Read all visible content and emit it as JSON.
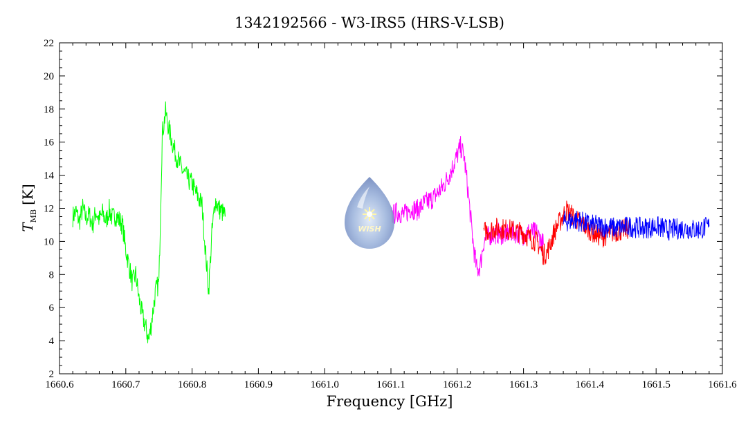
{
  "chart_data": {
    "type": "line",
    "title": "1342192566 - W3-IRS5 (HRS-V-LSB)",
    "xlabel": "Frequency [GHz]",
    "ylabel": "T",
    "ylabel_subscript": "MB",
    "ylabel_unit": "[K]",
    "xlim": [
      1660.6,
      1661.6
    ],
    "ylim": [
      2,
      22
    ],
    "xticks": [
      "1660.6",
      "1660.7",
      "1660.8",
      "1660.9",
      "1661.0",
      "1661.1",
      "1661.2",
      "1661.3",
      "1661.4",
      "1661.5",
      "1661.6"
    ],
    "yticks": [
      "2",
      "4",
      "6",
      "8",
      "10",
      "12",
      "14",
      "16",
      "18",
      "20",
      "22"
    ],
    "grid": false,
    "logo_text": "WISH",
    "series": [
      {
        "color": "#00ff00",
        "x": [
          1660.62,
          1660.625,
          1660.63,
          1660.635,
          1660.64,
          1660.645,
          1660.65,
          1660.655,
          1660.66,
          1660.665,
          1660.67,
          1660.675,
          1660.68,
          1660.685,
          1660.69,
          1660.695,
          1660.7,
          1660.705,
          1660.71,
          1660.715,
          1660.72,
          1660.725,
          1660.73,
          1660.735,
          1660.74,
          1660.745,
          1660.75,
          1660.755,
          1660.76,
          1660.765,
          1660.77,
          1660.775,
          1660.78,
          1660.785,
          1660.79,
          1660.795,
          1660.8,
          1660.805,
          1660.81,
          1660.815,
          1660.82,
          1660.825,
          1660.83,
          1660.835,
          1660.84,
          1660.845,
          1660.85
        ],
        "y": [
          11.5,
          11.8,
          11.2,
          12.0,
          11.4,
          11.6,
          11.0,
          11.8,
          11.3,
          11.7,
          11.2,
          11.9,
          11.4,
          11.6,
          11.3,
          11.0,
          9.5,
          8.5,
          7.5,
          8.0,
          6.5,
          5.5,
          4.8,
          4.0,
          5.5,
          7.0,
          7.5,
          16.5,
          17.8,
          16.8,
          16.0,
          15.3,
          14.8,
          14.3,
          14.0,
          13.7,
          13.5,
          13.0,
          12.6,
          12.2,
          9.5,
          7.0,
          10.5,
          12.5,
          12.0,
          11.8,
          11.5
        ]
      },
      {
        "color": "#ff00ff",
        "x": [
          1661.1,
          1661.11,
          1661.12,
          1661.13,
          1661.14,
          1661.15,
          1661.16,
          1661.17,
          1661.18,
          1661.19,
          1661.2,
          1661.205,
          1661.21,
          1661.215,
          1661.22,
          1661.225,
          1661.23,
          1661.235,
          1661.24,
          1661.25,
          1661.26,
          1661.27,
          1661.28,
          1661.29,
          1661.3,
          1661.31,
          1661.32,
          1661.33
        ],
        "y": [
          11.5,
          11.8,
          11.6,
          12.0,
          11.9,
          12.3,
          12.5,
          12.9,
          13.4,
          14.2,
          15.2,
          15.7,
          15.2,
          13.5,
          11.5,
          9.5,
          8.2,
          8.6,
          10.0,
          10.4,
          10.5,
          10.4,
          10.6,
          10.5,
          10.4,
          10.6,
          10.5,
          9.8
        ]
      },
      {
        "color": "#ff0000",
        "x": [
          1661.24,
          1661.26,
          1661.28,
          1661.3,
          1661.31,
          1661.32,
          1661.325,
          1661.33,
          1661.335,
          1661.34,
          1661.345,
          1661.35,
          1661.355,
          1661.36,
          1661.365,
          1661.37,
          1661.375,
          1661.38,
          1661.39,
          1661.4,
          1661.41,
          1661.42,
          1661.43,
          1661.44,
          1661.45,
          1661.46
        ],
        "y": [
          10.6,
          10.8,
          10.7,
          10.5,
          10.2,
          10.0,
          9.6,
          9.2,
          9.3,
          9.8,
          10.4,
          10.9,
          11.2,
          11.6,
          11.9,
          11.7,
          11.5,
          11.3,
          11.0,
          10.7,
          10.4,
          10.3,
          10.5,
          10.6,
          10.7,
          10.8
        ]
      },
      {
        "color": "#0000ff",
        "x": [
          1661.36,
          1661.38,
          1661.4,
          1661.42,
          1661.44,
          1661.46,
          1661.48,
          1661.5,
          1661.52,
          1661.54,
          1661.56,
          1661.58
        ],
        "y": [
          11.2,
          11.3,
          11.0,
          10.9,
          10.8,
          10.9,
          10.8,
          10.9,
          10.7,
          10.8,
          10.7,
          10.9
        ]
      }
    ]
  }
}
